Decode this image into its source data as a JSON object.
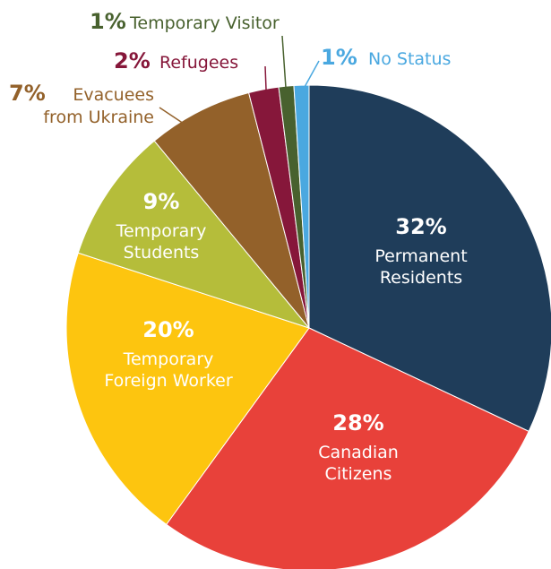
{
  "chart_data": {
    "type": "pie",
    "categories": [
      "Permanent Residents",
      "Canadian Citizens",
      "Temporary Foreign Worker",
      "Temporary Students",
      "Evacuees from Ukraine",
      "Refugees",
      "Temporary Visitor",
      "No Status"
    ],
    "values": [
      32,
      28,
      20,
      9,
      7,
      2,
      1,
      1
    ],
    "value_labels": [
      "32%",
      "28%",
      "20%",
      "9%",
      "7%",
      "2%",
      "1%",
      "1%"
    ],
    "colors": [
      "#1f3d5a",
      "#e8413a",
      "#fdc50f",
      "#b5bd3a",
      "#93612a",
      "#86173a",
      "#48612e",
      "#4aa8e0"
    ]
  }
}
